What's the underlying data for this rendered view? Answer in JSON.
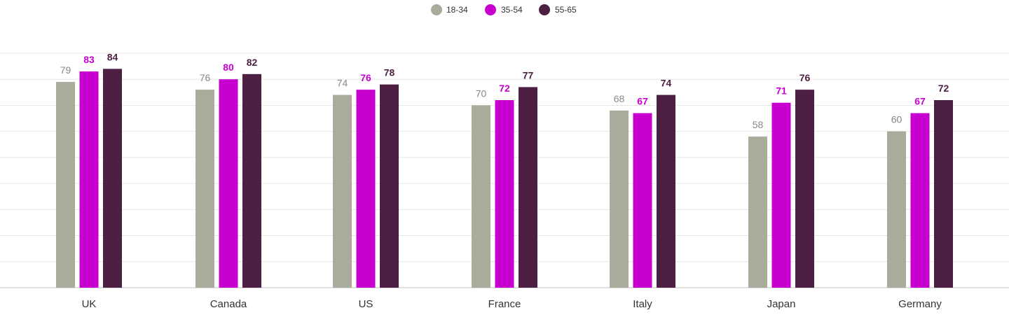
{
  "chart_data": {
    "type": "bar",
    "title": "",
    "xlabel": "",
    "ylabel": "",
    "categories": [
      "UK",
      "Canada",
      "US",
      "France",
      "Italy",
      "Japan",
      "Germany"
    ],
    "series": [
      {
        "name": "18-34",
        "color": "#abab9b",
        "values": [
          79,
          76,
          74,
          70,
          68,
          58,
          60
        ]
      },
      {
        "name": "35-54",
        "color": "#c800cf",
        "values": [
          83,
          80,
          76,
          72,
          67,
          71,
          67
        ]
      },
      {
        "name": "55-65",
        "color": "#4d1f43",
        "values": [
          84,
          82,
          78,
          77,
          74,
          76,
          72
        ]
      }
    ],
    "label_colors": [
      "#888888",
      "#c800cf",
      "#4d1f43"
    ],
    "ylim": [
      0,
      90
    ],
    "gridlines": true,
    "grid_step": 10,
    "legend_position": "top-center",
    "data_labels": true
  }
}
